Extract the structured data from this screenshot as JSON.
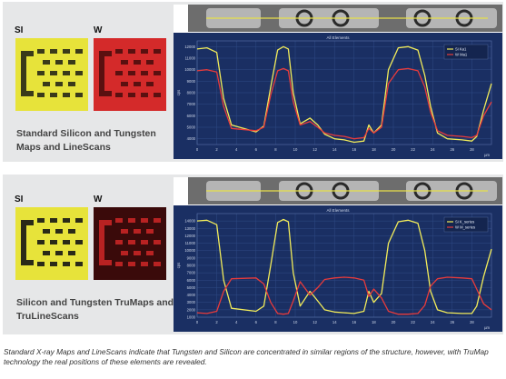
{
  "colors": {
    "si_map": "#e7e33a",
    "w_map_standard": "#d42a2a",
    "w_map_tru": "#3a0a0a",
    "chart_bg": "#1a2f63",
    "si_line": "#f2ec5a",
    "w_line": "#e83b3b",
    "grid": "#2f4a86"
  },
  "panels": [
    {
      "si_label": "SI",
      "w_label": "W",
      "caption": "Standard Silicon and Tungsten Maps and LineScans"
    },
    {
      "si_label": "SI",
      "w_label": "W",
      "caption": "Silicon and Tungsten TruMaps and TruLineScans"
    }
  ],
  "footnote": "Standard X-ray Maps and LineScans indicate that Tungsten and Silicon are concentrated in similar regions of the structure, however, with TruMap technology the real positions of these elements are revealed.",
  "chart_data": [
    {
      "type": "line",
      "title": "All Elements",
      "xlabel": "µm",
      "ylabel": "cps",
      "xlim": [
        0,
        30
      ],
      "ylim": [
        3500,
        12500
      ],
      "x_ticks": [
        0,
        2,
        4,
        6,
        8,
        10,
        12,
        14,
        16,
        18,
        20,
        22,
        24,
        26,
        28
      ],
      "y_ticks": [
        4000,
        5000,
        6000,
        7000,
        8000,
        9000,
        10000,
        11000,
        12000
      ],
      "legend_position": "top-right",
      "series": [
        {
          "name": "Si Ka1",
          "color_key": "si_line",
          "x": [
            0,
            1,
            2,
            2.7,
            3.5,
            6,
            6.8,
            7.5,
            8.2,
            8.8,
            9.3,
            9.8,
            10.5,
            11.5,
            12.3,
            13,
            14,
            15,
            16,
            17,
            17.5,
            18,
            18.8,
            19.5,
            20.5,
            21.5,
            22.5,
            23.2,
            23.8,
            24.5,
            25.5,
            27,
            28,
            28.5,
            29.2,
            30
          ],
          "y": [
            11800,
            11900,
            11500,
            7500,
            5200,
            4600,
            5100,
            8500,
            11700,
            12000,
            11800,
            8000,
            5300,
            5800,
            5200,
            4400,
            4000,
            3900,
            3700,
            3800,
            5200,
            4500,
            5200,
            10000,
            11900,
            12000,
            11700,
            9500,
            6800,
            4500,
            4000,
            3900,
            3800,
            4200,
            6500,
            8800
          ]
        },
        {
          "name": "W Ma1",
          "color_key": "w_line",
          "x": [
            0,
            1,
            2,
            2.7,
            3.5,
            6,
            6.8,
            7.5,
            8.2,
            8.8,
            9.3,
            9.8,
            10.5,
            11.5,
            12.3,
            13,
            14,
            15,
            16,
            17,
            17.5,
            18,
            18.8,
            19.5,
            20.5,
            21.5,
            22.5,
            23.2,
            23.8,
            24.5,
            25.5,
            27,
            28,
            28.5,
            29.2,
            30
          ],
          "y": [
            9900,
            10000,
            9800,
            6800,
            4900,
            4700,
            5000,
            7800,
            9900,
            10100,
            9900,
            7200,
            5200,
            5500,
            5000,
            4500,
            4300,
            4200,
            4000,
            4100,
            4900,
            4500,
            5000,
            8800,
            10000,
            10100,
            9900,
            8500,
            6300,
            4700,
            4300,
            4200,
            4100,
            4300,
            6000,
            7200
          ]
        }
      ]
    },
    {
      "type": "line",
      "title": "All Elements",
      "xlabel": "µm",
      "ylabel": "cps",
      "xlim": [
        0,
        30
      ],
      "ylim": [
        1000,
        15000
      ],
      "x_ticks": [
        0,
        2,
        4,
        6,
        8,
        10,
        12,
        14,
        16,
        18,
        20,
        22,
        24,
        26,
        28
      ],
      "y_ticks": [
        1000,
        2000,
        3000,
        4000,
        5000,
        6000,
        7000,
        8000,
        9000,
        10000,
        11000,
        12000,
        13000,
        14000
      ],
      "legend_position": "top-right",
      "series": [
        {
          "name": "Si K_series",
          "color_key": "si_line",
          "x": [
            0,
            1,
            2,
            2.7,
            3.5,
            6,
            6.8,
            7.5,
            8.2,
            8.8,
            9.3,
            9.8,
            10.5,
            11.5,
            12.3,
            13,
            14,
            15,
            16,
            17,
            17.5,
            18,
            18.8,
            19.5,
            20.5,
            21.5,
            22.5,
            23.2,
            23.8,
            24.5,
            25.5,
            27,
            28,
            28.5,
            29.2,
            30
          ],
          "y": [
            14000,
            14100,
            13500,
            6000,
            2200,
            1800,
            2500,
            8000,
            13800,
            14200,
            13900,
            7000,
            2500,
            4500,
            3200,
            2000,
            1700,
            1600,
            1500,
            1800,
            4500,
            3000,
            4200,
            11000,
            13900,
            14100,
            13700,
            10000,
            4500,
            2000,
            1600,
            1500,
            1500,
            2500,
            6500,
            10200
          ]
        },
        {
          "name": "W M_series",
          "color_key": "w_line",
          "x": [
            0,
            1,
            2,
            2.7,
            3.5,
            6,
            6.8,
            7.5,
            8.2,
            8.8,
            9.3,
            9.8,
            10.5,
            11.5,
            12.3,
            13,
            14,
            15,
            16,
            17,
            17.5,
            18,
            18.8,
            19.5,
            20.5,
            21.5,
            22.5,
            23.2,
            23.8,
            24.5,
            25.5,
            27,
            28,
            28.5,
            29.2,
            30
          ],
          "y": [
            1600,
            1500,
            1800,
            4500,
            6200,
            6300,
            5500,
            3000,
            1500,
            1400,
            1500,
            3200,
            5800,
            4000,
            5000,
            6100,
            6300,
            6400,
            6300,
            6000,
            3800,
            4800,
            3600,
            1800,
            1400,
            1400,
            1500,
            2600,
            5200,
            6200,
            6400,
            6300,
            6200,
            4800,
            2800,
            2000
          ]
        }
      ]
    }
  ]
}
